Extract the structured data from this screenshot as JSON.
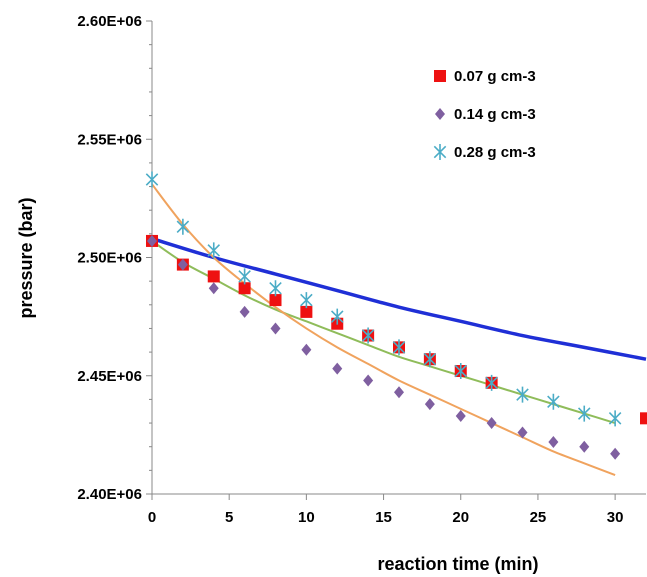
{
  "chart_data": {
    "type": "scatter",
    "xlabel": "reaction time (min)",
    "ylabel": "pressure (bar)",
    "xlim": [
      0,
      32
    ],
    "ylim": [
      2400000,
      2600000
    ],
    "x_ticks": [
      0,
      5,
      10,
      15,
      20,
      25,
      30
    ],
    "x_tick_labels": [
      "0",
      "5",
      "10",
      "15",
      "20",
      "25",
      "30"
    ],
    "y_ticks": [
      2400000,
      2450000,
      2500000,
      2550000,
      2600000
    ],
    "y_tick_labels": [
      "2.40E+06",
      "2.45E+06",
      "2.50E+06",
      "2.55E+06",
      "2.60E+06"
    ],
    "legend_position": "top-right",
    "series": [
      {
        "name": "0.07 g cm-3",
        "marker": "square",
        "color": "#ee1111",
        "x": [
          0,
          2,
          4,
          6,
          8,
          10,
          12,
          14,
          16,
          18,
          20,
          22,
          32
        ],
        "y": [
          2507000,
          2497000,
          2492000,
          2487000,
          2482000,
          2477000,
          2472000,
          2467000,
          2462000,
          2457000,
          2452000,
          2447000,
          2432000
        ]
      },
      {
        "name": "0.14 g cm-3",
        "marker": "diamond",
        "color": "#7f5fa0",
        "x": [
          0,
          2,
          4,
          6,
          8,
          10,
          12,
          14,
          16,
          18,
          20,
          22,
          24,
          26,
          28,
          30
        ],
        "y": [
          2507000,
          2497000,
          2487000,
          2477000,
          2470000,
          2461000,
          2453000,
          2448000,
          2443000,
          2438000,
          2433000,
          2430000,
          2426000,
          2422000,
          2420000,
          2417000
        ]
      },
      {
        "name": "0.28 g cm-3",
        "marker": "asterisk",
        "color": "#4bacc6",
        "x": [
          0,
          2,
          4,
          6,
          8,
          10,
          12,
          14,
          16,
          18,
          20,
          22,
          24,
          26,
          28,
          30
        ],
        "y": [
          2533000,
          2513000,
          2503000,
          2492000,
          2487000,
          2482000,
          2475000,
          2467000,
          2462000,
          2457000,
          2452000,
          2447000,
          2442000,
          2439000,
          2434000,
          2432000
        ]
      }
    ],
    "fit_curves": [
      {
        "color": "#1f2fd6",
        "x": [
          0,
          4,
          8,
          12,
          16,
          20,
          24,
          28,
          32
        ],
        "y": [
          2508000,
          2500000,
          2493000,
          2486000,
          2479000,
          2473000,
          2467000,
          2462000,
          2457000
        ]
      },
      {
        "color": "#8fbc5a",
        "x": [
          0,
          2,
          4,
          6,
          8,
          10,
          12,
          14,
          16,
          18,
          20,
          22,
          24,
          26,
          28,
          30
        ],
        "y": [
          2507000,
          2498000,
          2491000,
          2484000,
          2478000,
          2473000,
          2468000,
          2463000,
          2458000,
          2454000,
          2450000,
          2446000,
          2442000,
          2438000,
          2434000,
          2430000
        ]
      },
      {
        "color": "#f0a35e",
        "x": [
          0,
          2,
          4,
          6,
          8,
          10,
          12,
          14,
          16,
          18,
          20,
          22,
          24,
          26,
          28,
          30
        ],
        "y": [
          2531000,
          2514000,
          2500000,
          2489000,
          2479000,
          2470000,
          2462000,
          2455000,
          2448000,
          2442000,
          2436000,
          2430000,
          2424000,
          2418000,
          2413000,
          2408000
        ]
      }
    ]
  }
}
